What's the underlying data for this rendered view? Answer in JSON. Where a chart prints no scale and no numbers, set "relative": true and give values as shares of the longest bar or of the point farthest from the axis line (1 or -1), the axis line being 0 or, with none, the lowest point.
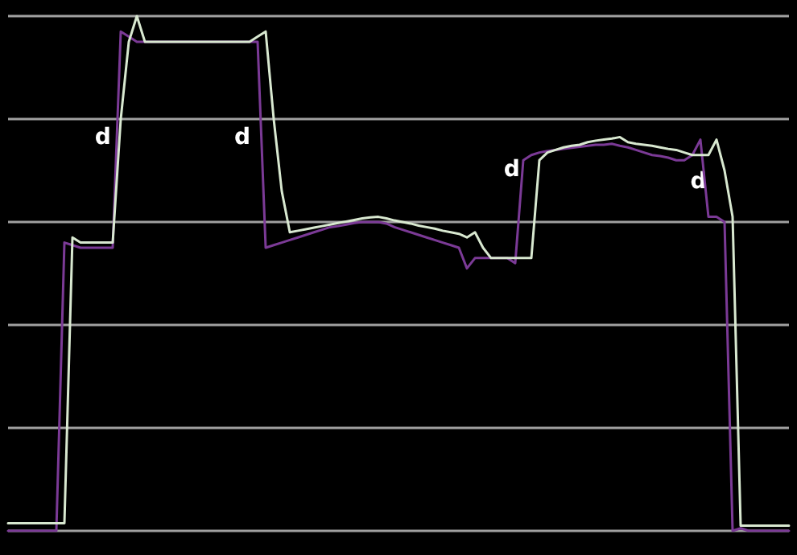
{
  "chart_data": {
    "type": "line",
    "relative": true,
    "grid": "y",
    "marker": "none",
    "line_style": "solid",
    "categories": [
      null,
      null,
      null,
      null,
      null,
      null,
      null,
      null,
      null,
      null,
      null,
      null,
      null,
      null,
      null,
      null,
      null,
      null,
      null,
      null,
      null,
      null,
      null,
      null,
      null,
      null,
      null,
      null,
      null,
      null,
      null,
      null,
      null,
      null,
      null,
      null,
      null,
      null,
      null,
      null,
      null,
      null,
      null,
      null,
      null,
      null,
      null,
      null,
      null,
      null,
      null,
      null,
      null,
      null,
      null,
      null,
      null,
      null,
      null,
      null,
      null,
      null,
      null,
      null,
      null,
      null,
      null,
      null,
      null,
      null,
      null,
      null,
      null,
      null,
      null,
      null,
      null,
      null,
      null,
      null,
      null,
      null,
      null,
      null,
      null,
      null,
      null,
      null,
      null,
      null,
      null,
      null,
      null,
      null,
      null,
      null,
      null,
      null
    ],
    "annotations": [
      "d",
      "d",
      "d",
      "d"
    ],
    "series": [
      {
        "color": "#7b3a96",
        "values": [
          0,
          0,
          0,
          0,
          0,
          0,
          0,
          0.56,
          0.555,
          0.55,
          0.55,
          0.55,
          0.55,
          0.55,
          0.97,
          0.96,
          0.95,
          0.95,
          0.95,
          0.95,
          0.95,
          0.95,
          0.95,
          0.95,
          0.95,
          0.95,
          0.95,
          0.95,
          0.95,
          0.95,
          0.95,
          0.95,
          0.55,
          0.555,
          0.56,
          0.565,
          0.57,
          0.575,
          0.58,
          0.585,
          0.59,
          0.592,
          0.595,
          0.598,
          0.6,
          0.6,
          0.6,
          0.597,
          0.59,
          0.585,
          0.58,
          0.575,
          0.57,
          0.565,
          0.56,
          0.555,
          0.55,
          0.51,
          0.53,
          0.53,
          0.53,
          0.53,
          0.53,
          0.52,
          0.72,
          0.73,
          0.735,
          0.738,
          0.74,
          0.742,
          0.744,
          0.746,
          0.748,
          0.75,
          0.75,
          0.752,
          0.748,
          0.745,
          0.74,
          0.735,
          0.73,
          0.728,
          0.725,
          0.72,
          0.72,
          0.73,
          0.76,
          0.61,
          0.61,
          0.6,
          0,
          0.005,
          0,
          0,
          0,
          0,
          0,
          0
        ]
      },
      {
        "color": "#d8e8d0",
        "values": [
          0.015,
          0.015,
          0.015,
          0.015,
          0.015,
          0.015,
          0.015,
          0.015,
          0.57,
          0.56,
          0.56,
          0.56,
          0.56,
          0.56,
          0.8,
          0.95,
          1,
          0.95,
          0.95,
          0.95,
          0.95,
          0.95,
          0.95,
          0.95,
          0.95,
          0.95,
          0.95,
          0.95,
          0.95,
          0.95,
          0.95,
          0.96,
          0.97,
          0.8,
          0.66,
          0.58,
          0.583,
          0.586,
          0.589,
          0.592,
          0.595,
          0.598,
          0.601,
          0.604,
          0.607,
          0.609,
          0.61,
          0.607,
          0.603,
          0.6,
          0.597,
          0.593,
          0.59,
          0.587,
          0.583,
          0.58,
          0.577,
          0.57,
          0.58,
          0.55,
          0.53,
          0.53,
          0.53,
          0.53,
          0.53,
          0.53,
          0.72,
          0.735,
          0.74,
          0.745,
          0.748,
          0.75,
          0.755,
          0.758,
          0.76,
          0.762,
          0.765,
          0.755,
          0.752,
          0.75,
          0.748,
          0.745,
          0.742,
          0.74,
          0.735,
          0.73,
          0.73,
          0.73,
          0.76,
          0.7,
          0.61,
          0.01,
          0.01,
          0.01,
          0.01,
          0.01,
          0.01,
          0.01
        ]
      }
    ]
  }
}
